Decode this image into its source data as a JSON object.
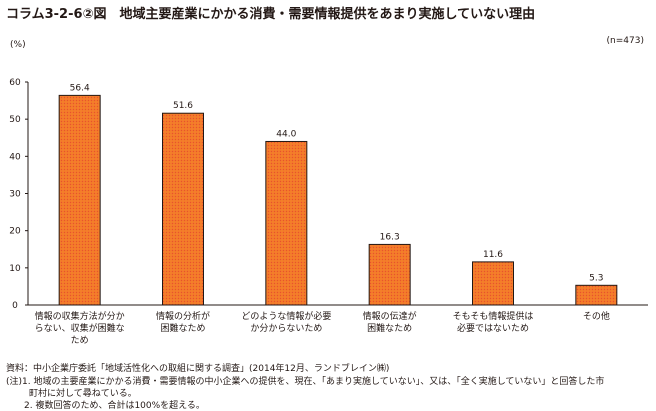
{
  "title": "コラム3-2-6②図　地域主要産業にかかる消費・需要情報提供をあまり実施していない理由",
  "sample_note": "(n=473)",
  "chart_data": {
    "type": "bar",
    "unit_label": "(%)",
    "categories": [
      [
        "情報の収集方法が分か",
        "らない、収集が困難な",
        "ため"
      ],
      [
        "情報の分析が",
        "困難なため"
      ],
      [
        "どのような情報が必要",
        "か分からないため"
      ],
      [
        "情報の伝達が",
        "困難なため"
      ],
      [
        "そもそも情報提供は",
        "必要ではないため"
      ],
      [
        "その他"
      ]
    ],
    "values": [
      56.4,
      51.6,
      44.0,
      16.3,
      11.6,
      5.3
    ],
    "value_labels": [
      "56.4",
      "51.6",
      "44.0",
      "16.3",
      "11.6",
      "5.3"
    ],
    "ylim": [
      0,
      60
    ],
    "yticks": [
      0,
      10,
      20,
      30,
      40,
      50,
      60
    ],
    "bar_color": "#f47e2a",
    "bar_dot_color": "#e8522d"
  },
  "footnotes": {
    "source": "資料：中小企業庁委託「地域活性化への取組に関する調査」(2014年12月、ランドブレイン㈱)",
    "note1_a": "(注)1. 地域の主要産業にかかる消費・需要情報の中小企業への提供を、現在、「あまり実施していない」、又は、「全く実施していない」と回答した市",
    "note1_b": "町村に対して尋ねている。",
    "note2": "2. 複数回答のため、合計は100%を超える。"
  }
}
